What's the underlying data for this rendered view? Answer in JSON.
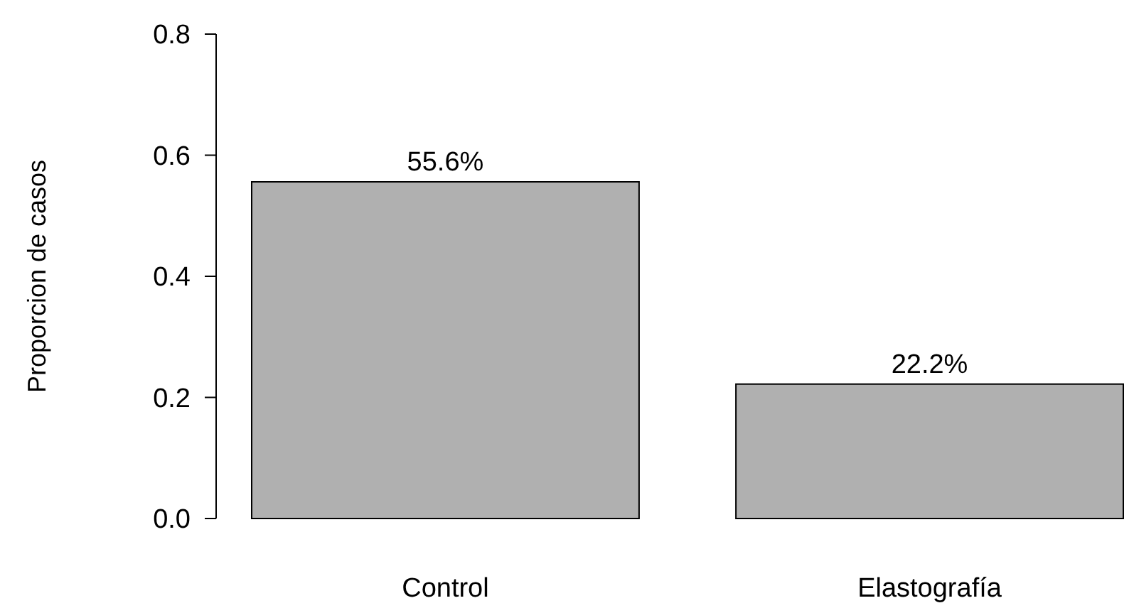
{
  "chart_data": {
    "type": "bar",
    "ylabel": "Proporcion de casos",
    "categories": [
      "Control",
      "Elastografía"
    ],
    "values": [
      0.556,
      0.222
    ],
    "value_labels": [
      "55.6%",
      "22.2%"
    ],
    "color": "#b0b0b0",
    "ylim": [
      0,
      0.8
    ],
    "yticks": [
      {
        "value": 0,
        "label": "0.0"
      },
      {
        "value": 0.2,
        "label": "0.2"
      },
      {
        "value": 0.4,
        "label": "0.4"
      },
      {
        "value": 0.6,
        "label": "0.6"
      },
      {
        "value": 0.8,
        "label": "0.8"
      }
    ],
    "grid": false
  }
}
